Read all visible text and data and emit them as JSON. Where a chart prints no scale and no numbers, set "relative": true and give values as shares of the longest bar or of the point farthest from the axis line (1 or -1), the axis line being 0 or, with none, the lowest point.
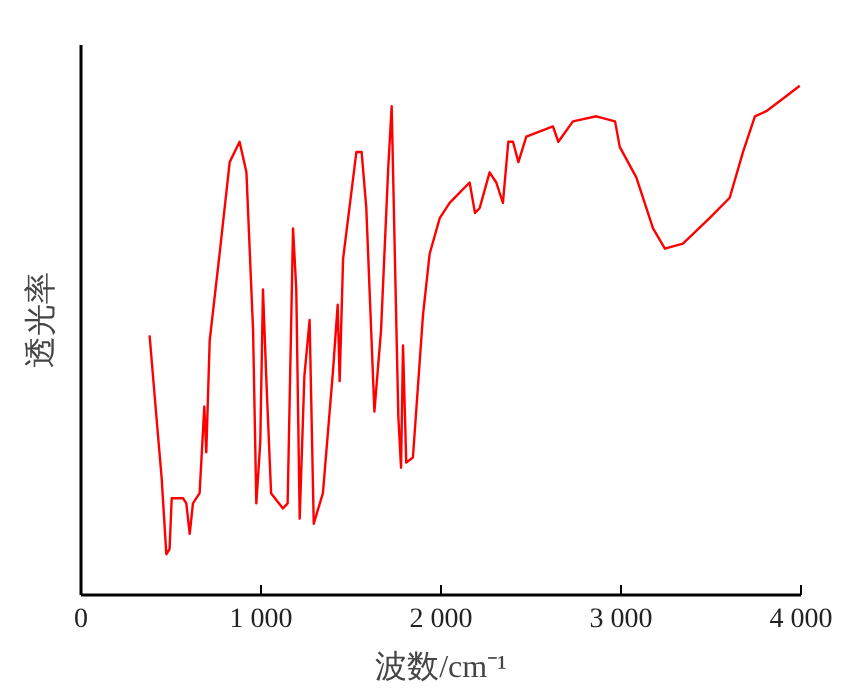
{
  "chart_data": {
    "type": "line",
    "relative": true,
    "xlabel": "波数/cm⁻¹",
    "ylabel": "透光率",
    "xlim": [
      0,
      4000
    ],
    "xticks": [
      0,
      {
        "value": 1000,
        "label": "1 000"
      },
      {
        "value": 2000,
        "label": "2 000"
      },
      {
        "value": 3000,
        "label": "3 000"
      },
      {
        "value": 4000,
        "label": "4 000"
      }
    ],
    "grid": false,
    "tick_labels": "x",
    "series": [
      {
        "color": "#ff0000",
        "x": [
          381,
          419,
          448,
          474,
          492,
          504,
          567,
          585,
          604,
          622,
          659,
          685,
          696,
          715,
          770,
          826,
          881,
          919,
          956,
          974,
          996,
          1011,
          1030,
          1056,
          1122,
          1148,
          1178,
          1196,
          1215,
          1241,
          1270,
          1293,
          1344,
          1400,
          1426,
          1437,
          1456,
          1530,
          1559,
          1585,
          1630,
          1667,
          1707,
          1726,
          1744,
          1763,
          1778,
          1789,
          1807,
          1844,
          1900,
          1937,
          1993,
          2048,
          2159,
          2189,
          2215,
          2270,
          2307,
          2344,
          2374,
          2400,
          2430,
          2474,
          2622,
          2652,
          2733,
          2863,
          2967,
          2993,
          3085,
          3178,
          3244,
          3344,
          3492,
          3604,
          3678,
          3744,
          3807,
          3919,
          3993
        ],
        "values": [
          0.51,
          0.35,
          0.23,
          0.08,
          0.09,
          0.19,
          0.19,
          0.18,
          0.12,
          0.18,
          0.2,
          0.37,
          0.28,
          0.5,
          0.67,
          0.85,
          0.89,
          0.83,
          0.52,
          0.18,
          0.3,
          0.6,
          0.42,
          0.2,
          0.17,
          0.18,
          0.72,
          0.6,
          0.15,
          0.43,
          0.54,
          0.14,
          0.2,
          0.44,
          0.57,
          0.42,
          0.66,
          0.87,
          0.87,
          0.76,
          0.36,
          0.52,
          0.84,
          0.96,
          0.66,
          0.35,
          0.25,
          0.49,
          0.26,
          0.27,
          0.55,
          0.67,
          0.74,
          0.77,
          0.81,
          0.75,
          0.76,
          0.83,
          0.81,
          0.77,
          0.89,
          0.89,
          0.85,
          0.9,
          0.92,
          0.89,
          0.93,
          0.94,
          0.93,
          0.88,
          0.82,
          0.72,
          0.68,
          0.69,
          0.74,
          0.78,
          0.87,
          0.94,
          0.95,
          0.98,
          1
        ]
      }
    ]
  }
}
